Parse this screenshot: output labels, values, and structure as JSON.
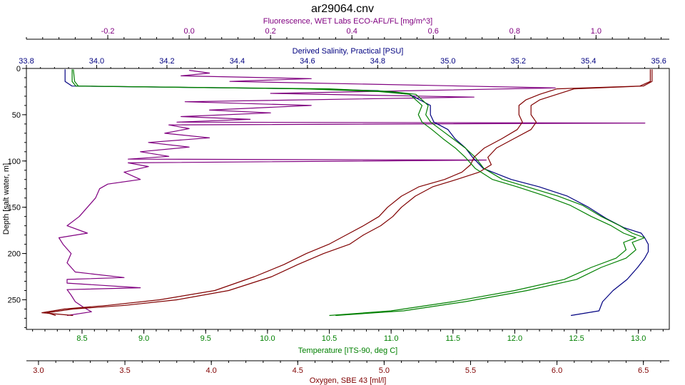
{
  "chart_data": {
    "type": "line",
    "title": "ar29064.cnv",
    "plot_area_color": "#ffffff",
    "axes": {
      "y": {
        "label": "Depth [salt water, m]",
        "range": [
          0,
          282
        ],
        "inverted": true,
        "ticks": [
          0,
          50,
          100,
          150,
          200,
          250
        ],
        "color": "#000000"
      },
      "fluorescence": {
        "label": "Fluorescence, WET Labs ECO-AFL/FL [mg/m^3]",
        "position": "top",
        "range": [
          -0.4,
          1.18
        ],
        "ticks": [
          -0.2,
          0.0,
          0.2,
          0.4,
          0.6,
          0.8,
          1.0
        ],
        "tick_labels": [
          "-0.2",
          "0.0",
          "0.2",
          "0.4",
          "0.6",
          "0.8",
          "1.0"
        ],
        "color": "#800080"
      },
      "salinity": {
        "label": "Derived Salinity, Practical [PSU]",
        "position": "top",
        "range": [
          33.8,
          35.63
        ],
        "ticks": [
          33.8,
          34.0,
          34.2,
          34.4,
          34.6,
          34.8,
          35.0,
          35.2,
          35.4,
          35.6
        ],
        "tick_labels": [
          "33.8",
          "34.0",
          "34.2",
          "34.4",
          "34.6",
          "34.8",
          "35.0",
          "35.2",
          "35.4",
          "35.6"
        ],
        "color": "#000080"
      },
      "temperature": {
        "label": "Temperature [ITS-90, deg C]",
        "position": "bottom",
        "range": [
          8.05,
          13.25
        ],
        "ticks": [
          8.5,
          9.0,
          9.5,
          10.0,
          10.5,
          11.0,
          11.5,
          12.0,
          12.5,
          13.0
        ],
        "tick_labels": [
          "8.5",
          "9.0",
          "9.5",
          "10.0",
          "10.5",
          "11.0",
          "11.5",
          "12.0",
          "12.5",
          "13.0"
        ],
        "color": "#008000"
      },
      "oxygen": {
        "label": "Oxygen, SBE 43 [ml/l]",
        "position": "bottom",
        "range": [
          2.93,
          6.65
        ],
        "ticks": [
          3.0,
          3.5,
          4.0,
          4.5,
          5.0,
          5.5,
          6.0,
          6.5
        ],
        "tick_labels": [
          "3.0",
          "3.5",
          "4.0",
          "4.5",
          "5.0",
          "5.5",
          "6.0",
          "6.5"
        ],
        "color": "#800000"
      }
    },
    "series": [
      {
        "axis": "fluorescence",
        "color": "#800080",
        "points": [
          [
            0.0,
            2
          ],
          [
            0.05,
            5
          ],
          [
            -0.02,
            8
          ],
          [
            0.3,
            11
          ],
          [
            0.1,
            14
          ],
          [
            0.9,
            21
          ],
          [
            0.2,
            27
          ],
          [
            0.7,
            31
          ],
          [
            -0.01,
            36
          ],
          [
            0.3,
            40
          ],
          [
            0.05,
            45
          ],
          [
            0.2,
            48
          ],
          [
            -0.02,
            52
          ],
          [
            0.15,
            55
          ],
          [
            -0.03,
            58
          ],
          [
            1.12,
            59
          ],
          [
            -0.05,
            61
          ],
          [
            0.0,
            65
          ],
          [
            -0.06,
            70
          ],
          [
            0.05,
            75
          ],
          [
            -0.1,
            80
          ],
          [
            0.0,
            85
          ],
          [
            -0.12,
            90
          ],
          [
            -0.05,
            95
          ],
          [
            -0.15,
            98
          ],
          [
            0.73,
            99
          ],
          [
            -0.15,
            102
          ],
          [
            -0.1,
            106
          ],
          [
            -0.16,
            112
          ],
          [
            -0.12,
            120
          ],
          [
            -0.2,
            125
          ],
          [
            -0.22,
            130
          ],
          [
            -0.23,
            140
          ],
          [
            -0.25,
            150
          ],
          [
            -0.27,
            160
          ],
          [
            -0.3,
            170
          ],
          [
            -0.25,
            178
          ],
          [
            -0.32,
            183
          ],
          [
            -0.31,
            190
          ],
          [
            -0.29,
            200
          ],
          [
            -0.3,
            210
          ],
          [
            -0.28,
            220
          ],
          [
            -0.16,
            226
          ],
          [
            -0.3,
            228
          ],
          [
            -0.3,
            232
          ],
          [
            -0.12,
            237
          ],
          [
            -0.3,
            239
          ],
          [
            -0.29,
            245
          ],
          [
            -0.28,
            252
          ],
          [
            -0.26,
            258
          ],
          [
            -0.24,
            263
          ],
          [
            -0.3,
            267
          ]
        ]
      },
      {
        "axis": "salinity",
        "color": "#000080",
        "points": [
          [
            33.91,
            1
          ],
          [
            33.91,
            14
          ],
          [
            33.93,
            19
          ],
          [
            34.6,
            22
          ],
          [
            34.8,
            24
          ],
          [
            34.89,
            28
          ],
          [
            34.92,
            34
          ],
          [
            34.95,
            40
          ],
          [
            34.95,
            50
          ],
          [
            34.96,
            58
          ],
          [
            35.0,
            66
          ],
          [
            35.02,
            76
          ],
          [
            35.05,
            86
          ],
          [
            35.07,
            96
          ],
          [
            35.1,
            108
          ],
          [
            35.18,
            120
          ],
          [
            35.26,
            128
          ],
          [
            35.34,
            138
          ],
          [
            35.4,
            150
          ],
          [
            35.45,
            162
          ],
          [
            35.5,
            172
          ],
          [
            35.55,
            178
          ],
          [
            35.56,
            183
          ],
          [
            35.57,
            190
          ],
          [
            35.57,
            198
          ],
          [
            35.56,
            205
          ],
          [
            35.54,
            215
          ],
          [
            35.51,
            228
          ],
          [
            35.47,
            240
          ],
          [
            35.44,
            252
          ],
          [
            35.43,
            262
          ],
          [
            35.35,
            267
          ]
        ]
      },
      {
        "axis": "temperature",
        "color": "#008000",
        "points": [
          [
            8.42,
            1
          ],
          [
            8.42,
            14
          ],
          [
            8.45,
            19
          ],
          [
            10.5,
            22
          ],
          [
            11.0,
            25
          ],
          [
            11.2,
            28
          ],
          [
            11.25,
            34
          ],
          [
            11.3,
            40
          ],
          [
            11.28,
            50
          ],
          [
            11.32,
            58
          ],
          [
            11.4,
            66
          ],
          [
            11.5,
            76
          ],
          [
            11.6,
            86
          ],
          [
            11.68,
            96
          ],
          [
            11.75,
            108
          ],
          [
            11.9,
            120
          ],
          [
            12.1,
            128
          ],
          [
            12.35,
            138
          ],
          [
            12.55,
            148
          ],
          [
            12.7,
            160
          ],
          [
            12.85,
            170
          ],
          [
            12.95,
            178
          ],
          [
            13.05,
            183
          ],
          [
            12.95,
            188
          ],
          [
            12.98,
            196
          ],
          [
            12.9,
            205
          ],
          [
            12.7,
            215
          ],
          [
            12.5,
            228
          ],
          [
            12.1,
            240
          ],
          [
            11.6,
            252
          ],
          [
            11.1,
            262
          ],
          [
            10.55,
            267
          ]
        ]
      },
      {
        "axis": "oxygen",
        "color": "#800000",
        "points": [
          [
            6.55,
            1
          ],
          [
            6.55,
            14
          ],
          [
            6.5,
            19
          ],
          [
            6.1,
            22
          ],
          [
            6.0,
            28
          ],
          [
            5.9,
            34
          ],
          [
            5.85,
            40
          ],
          [
            5.85,
            50
          ],
          [
            5.88,
            58
          ],
          [
            5.85,
            66
          ],
          [
            5.75,
            76
          ],
          [
            5.65,
            86
          ],
          [
            5.6,
            96
          ],
          [
            5.62,
            104
          ],
          [
            5.55,
            112
          ],
          [
            5.42,
            120
          ],
          [
            5.28,
            128
          ],
          [
            5.18,
            138
          ],
          [
            5.1,
            150
          ],
          [
            5.05,
            160
          ],
          [
            4.98,
            170
          ],
          [
            4.88,
            180
          ],
          [
            4.8,
            190
          ],
          [
            4.65,
            200
          ],
          [
            4.5,
            212
          ],
          [
            4.35,
            225
          ],
          [
            4.1,
            240
          ],
          [
            3.8,
            250
          ],
          [
            3.5,
            256
          ],
          [
            3.2,
            260
          ],
          [
            3.05,
            264
          ],
          [
            3.1,
            267
          ]
        ]
      },
      {
        "axis": "oxygen",
        "color": "#800000",
        "points": [
          [
            6.54,
            1
          ],
          [
            6.54,
            14
          ],
          [
            6.48,
            19
          ],
          [
            6.0,
            22
          ],
          [
            5.9,
            28
          ],
          [
            5.82,
            34
          ],
          [
            5.78,
            40
          ],
          [
            5.78,
            50
          ],
          [
            5.8,
            58
          ],
          [
            5.77,
            66
          ],
          [
            5.68,
            76
          ],
          [
            5.58,
            86
          ],
          [
            5.52,
            96
          ],
          [
            5.5,
            104
          ],
          [
            5.45,
            112
          ],
          [
            5.35,
            120
          ],
          [
            5.2,
            128
          ],
          [
            5.1,
            138
          ],
          [
            5.02,
            150
          ],
          [
            4.97,
            160
          ],
          [
            4.88,
            170
          ],
          [
            4.78,
            180
          ],
          [
            4.68,
            190
          ],
          [
            4.55,
            200
          ],
          [
            4.42,
            212
          ],
          [
            4.25,
            225
          ],
          [
            4.02,
            240
          ],
          [
            3.7,
            250
          ],
          [
            3.4,
            256
          ],
          [
            3.15,
            260
          ],
          [
            3.02,
            264
          ],
          [
            3.2,
            267
          ]
        ]
      },
      {
        "axis": "temperature",
        "color": "#008000",
        "points": [
          [
            8.43,
            1
          ],
          [
            8.44,
            14
          ],
          [
            8.47,
            19
          ],
          [
            10.3,
            22
          ],
          [
            10.9,
            25
          ],
          [
            11.15,
            28
          ],
          [
            11.2,
            34
          ],
          [
            11.25,
            40
          ],
          [
            11.22,
            50
          ],
          [
            11.25,
            58
          ],
          [
            11.33,
            66
          ],
          [
            11.42,
            76
          ],
          [
            11.52,
            86
          ],
          [
            11.6,
            96
          ],
          [
            11.68,
            108
          ],
          [
            11.82,
            120
          ],
          [
            12.02,
            128
          ],
          [
            12.25,
            138
          ],
          [
            12.45,
            148
          ],
          [
            12.62,
            160
          ],
          [
            12.78,
            170
          ],
          [
            12.88,
            178
          ],
          [
            12.98,
            183
          ],
          [
            12.88,
            188
          ],
          [
            12.9,
            196
          ],
          [
            12.82,
            205
          ],
          [
            12.62,
            215
          ],
          [
            12.4,
            228
          ],
          [
            12.0,
            240
          ],
          [
            11.5,
            252
          ],
          [
            11.0,
            262
          ],
          [
            10.5,
            267
          ]
        ]
      }
    ]
  }
}
